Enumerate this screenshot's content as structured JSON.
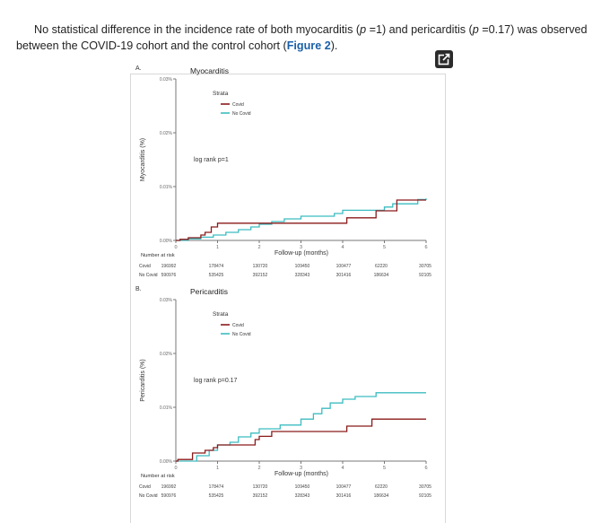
{
  "paragraph": {
    "part1": "No statistical difference in the incidence rate of both myocarditis (",
    "p1_symbol": "p",
    "part2": " =1) and pericarditis (",
    "p2_symbol": "p",
    "part3": " =0.17) was observed between the COVID-19 cohort and the control cohort (",
    "figure_link": "Figure 2",
    "part4": ")."
  },
  "expand_icon": "external-expand-icon",
  "chart_data": [
    {
      "type": "line",
      "panel_label": "A.",
      "title": "Myocarditis",
      "ylabel": "Myocarditis (%)",
      "xlabel": "Follow-up (months)",
      "ylim": [
        0,
        0.03
      ],
      "xlim": [
        0,
        6
      ],
      "yticks": [
        "0.00%",
        "0.01%",
        "0.02%",
        "0.03%"
      ],
      "xticks": [
        "0",
        "1",
        "2",
        "3",
        "4",
        "5",
        "6"
      ],
      "legend_title": "Strata",
      "annotation": "log rank p=1",
      "series": [
        {
          "name": "Covid",
          "color": "#8b1a1a",
          "x": [
            0,
            0.1,
            0.3,
            0.6,
            0.7,
            0.85,
            1.0,
            4.1,
            4.8,
            5.3,
            6.0
          ],
          "y": [
            0,
            0.0002,
            0.0005,
            0.001,
            0.0015,
            0.0025,
            0.0032,
            0.0042,
            0.0055,
            0.0075,
            0.0075
          ]
        },
        {
          "name": "No Covid",
          "color": "#3cbcc0",
          "x": [
            0,
            0.3,
            0.6,
            0.9,
            1.2,
            1.5,
            1.8,
            2.0,
            2.3,
            2.6,
            3.0,
            3.8,
            4.0,
            4.8,
            5.0,
            5.2,
            5.8,
            6.0
          ],
          "y": [
            0,
            0.0003,
            0.0006,
            0.001,
            0.0015,
            0.002,
            0.0025,
            0.003,
            0.0035,
            0.004,
            0.0045,
            0.005,
            0.0056,
            0.0056,
            0.0062,
            0.0068,
            0.0076,
            0.0078
          ]
        }
      ],
      "risk_table": {
        "title": "Number at risk",
        "rows": [
          {
            "label": "Covid",
            "values": [
              "196992",
              "178474",
              "130720",
              "109450",
              "100477",
              "62220",
              "30705"
            ]
          },
          {
            "label": "No Covid",
            "values": [
              "590976",
              "535425",
              "392152",
              "328343",
              "301416",
              "186634",
              "92105"
            ]
          }
        ]
      }
    },
    {
      "type": "line",
      "panel_label": "B.",
      "title": "Pericarditis",
      "ylabel": "Pericarditis (%)",
      "xlabel": "Follow-up (months)",
      "ylim": [
        0,
        0.03
      ],
      "xlim": [
        0,
        6
      ],
      "yticks": [
        "0.00%",
        "0.01%",
        "0.02%",
        "0.03%"
      ],
      "xticks": [
        "0",
        "1",
        "2",
        "3",
        "4",
        "5",
        "6"
      ],
      "legend_title": "Strata",
      "annotation": "log rank p=0.17",
      "series": [
        {
          "name": "Covid",
          "color": "#8b1a1a",
          "x": [
            0,
            0.05,
            0.4,
            0.7,
            0.9,
            1.0,
            1.9,
            2.0,
            2.3,
            4.1,
            4.7,
            6.0
          ],
          "y": [
            0,
            0.0003,
            0.0015,
            0.002,
            0.0025,
            0.003,
            0.004,
            0.0046,
            0.0055,
            0.0065,
            0.0078,
            0.0078
          ]
        },
        {
          "name": "No Covid",
          "color": "#3cbcc0",
          "x": [
            0,
            0.5,
            0.8,
            1.0,
            1.3,
            1.5,
            1.8,
            2.0,
            2.5,
            3.0,
            3.3,
            3.5,
            3.7,
            4.0,
            4.3,
            4.8,
            6.0
          ],
          "y": [
            0,
            0.001,
            0.002,
            0.003,
            0.0035,
            0.0045,
            0.0052,
            0.006,
            0.0067,
            0.0078,
            0.0088,
            0.0098,
            0.0108,
            0.0115,
            0.012,
            0.0127,
            0.0127
          ]
        }
      ],
      "risk_table": {
        "title": "Number at risk",
        "rows": [
          {
            "label": "Covid",
            "values": [
              "196992",
              "178474",
              "130720",
              "109450",
              "100477",
              "62220",
              "30705"
            ]
          },
          {
            "label": "No Covid",
            "values": [
              "590976",
              "535425",
              "392152",
              "328343",
              "301416",
              "186634",
              "92105"
            ]
          }
        ]
      }
    }
  ]
}
